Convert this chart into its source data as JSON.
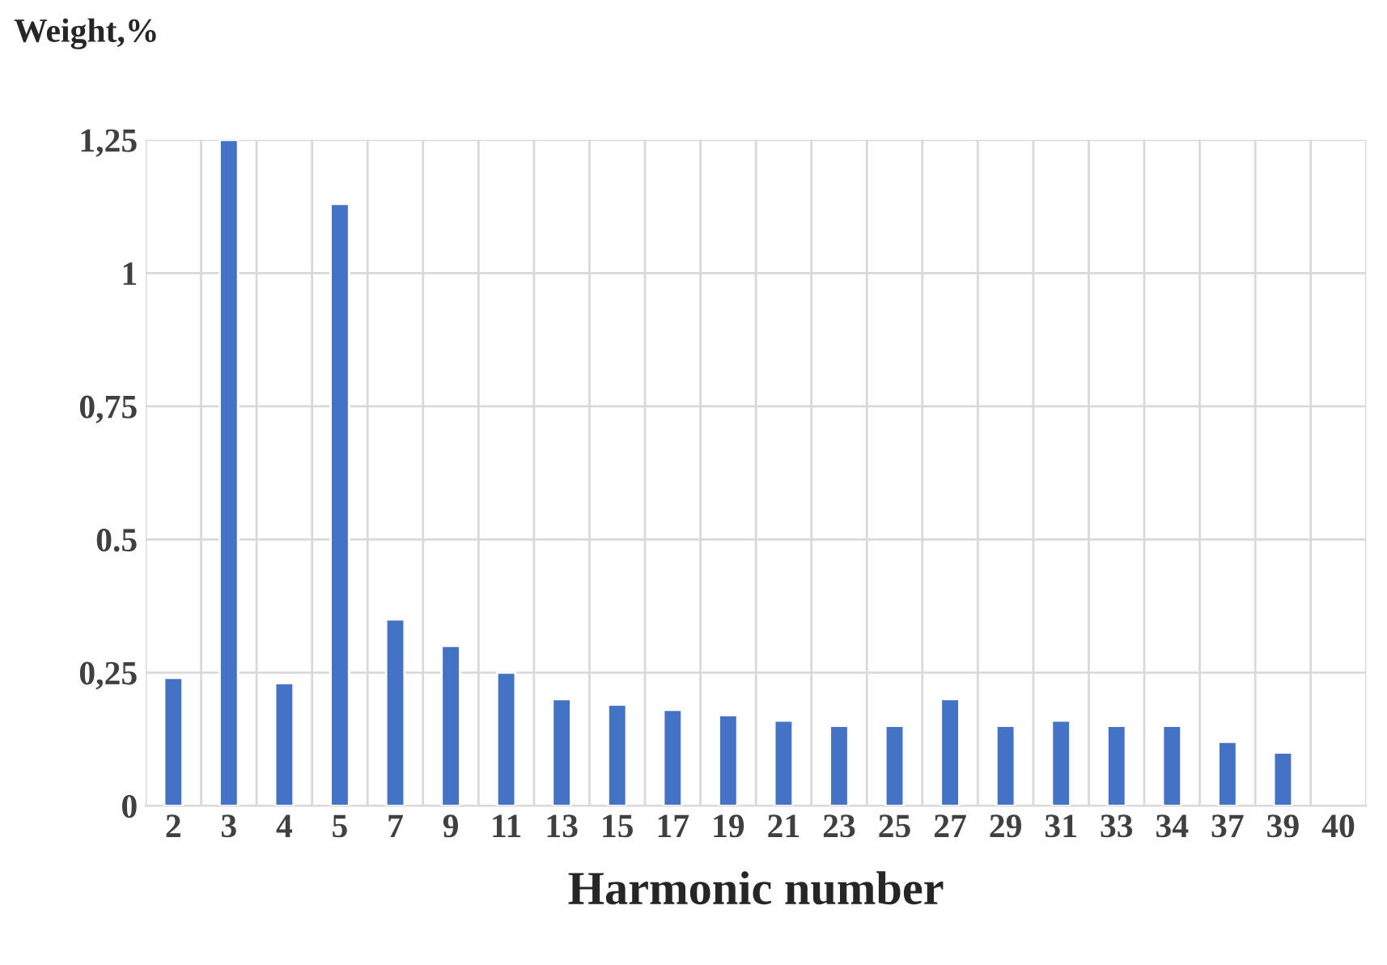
{
  "chart_data": {
    "type": "bar",
    "ylabel": "Weight,%",
    "xlabel": "Harmonic number",
    "categories": [
      "2",
      "3",
      "4",
      "5",
      "7",
      "9",
      "11",
      "13",
      "15",
      "17",
      "19",
      "21",
      "23",
      "25",
      "27",
      "29",
      "31",
      "33",
      "34",
      "37",
      "39",
      "40"
    ],
    "values": [
      0.24,
      1.25,
      0.23,
      1.13,
      0.35,
      0.3,
      0.25,
      0.2,
      0.19,
      0.18,
      0.17,
      0.16,
      0.15,
      0.15,
      0.2,
      0.15,
      0.16,
      0.15,
      0.15,
      0.12,
      0.1,
      null
    ],
    "color": "#4472c4",
    "ylim": [
      0,
      1.25
    ],
    "yticks": [
      0,
      {
        "value": 0.25,
        "label": "0,25"
      },
      0.5,
      {
        "value": 0.75,
        "label": "0,75"
      },
      1,
      {
        "value": 1.25,
        "label": "1,25"
      }
    ],
    "grid": true
  }
}
